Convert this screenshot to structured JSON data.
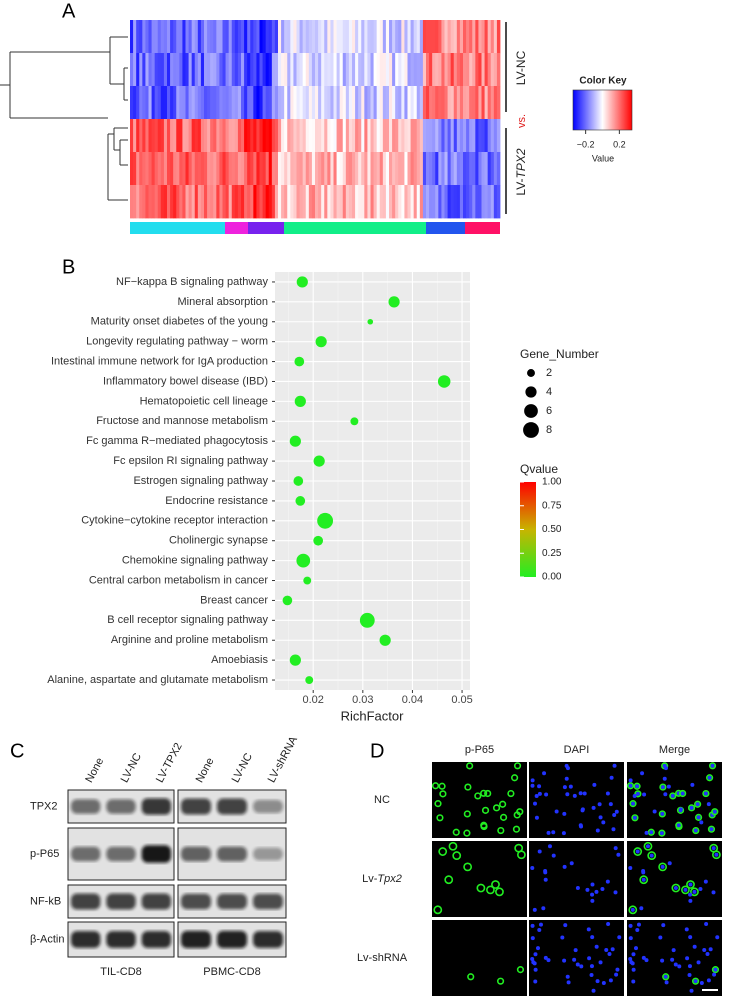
{
  "panel_a": {
    "label": "A",
    "group_top": "LV-NC",
    "versus": "vs.",
    "group_bottom": [
      "LV-",
      "TPX2"
    ],
    "color_key": {
      "title": "Color Key",
      "label": "Value",
      "lim": [
        -0.35,
        0.35
      ],
      "ticks": [
        {
          "value": -0.2,
          "label": "−0.2"
        },
        0.2
      ]
    }
  },
  "chart_data": {
    "label": "B",
    "type": "scatter",
    "x_label": "RichFactor",
    "categories": [
      "NF−kappa B signaling pathway",
      "Mineral absorption",
      "Maturity onset diabetes of the young",
      "Longevity regulating pathway − worm",
      "Intestinal immune network for IgA production",
      "Inflammatory bowel disease (IBD)",
      "Hematopoietic cell lineage",
      "Fructose and mannose metabolism",
      "Fc gamma R−mediated phagocytosis",
      "Fc epsilon RI signaling pathway",
      "Estrogen signaling pathway",
      "Endocrine resistance",
      "Cytokine−cytokine receptor interaction",
      "Cholinergic synapse",
      "Chemokine signaling pathway",
      "Central carbon metabolism in cancer",
      "Breast cancer",
      "B cell receptor signaling pathway",
      "Arginine and proline metabolism",
      "Amoebiasis",
      "Alanine, aspartate and glutamate metabolism"
    ],
    "values": [
      0.0178,
      0.0363,
      0.0315,
      0.0216,
      0.0172,
      0.0464,
      0.0174,
      0.0283,
      0.0164,
      0.0212,
      0.017,
      0.0174,
      0.0224,
      0.021,
      0.018,
      0.0188,
      0.0148,
      0.0309,
      0.0345,
      0.0164,
      0.0192
    ],
    "sizes": [
      4,
      4,
      1,
      4,
      3,
      5,
      4,
      2,
      4,
      4,
      3,
      3,
      8,
      3,
      6,
      2,
      3,
      7,
      4,
      4,
      2
    ],
    "qvalues": [
      0,
      0,
      0,
      0,
      0,
      0,
      0,
      0,
      0,
      0,
      0,
      0,
      0,
      0,
      0,
      0,
      0,
      0,
      0,
      0,
      0
    ],
    "xlim": [
      0.0123,
      0.0516
    ],
    "xticks": [
      0.02,
      0.03,
      0.04,
      0.05
    ],
    "grid": true,
    "size_legend": {
      "title": "Gene_Number",
      "values": [
        2,
        4,
        6,
        8
      ]
    },
    "color_legend": {
      "title": "Qvalue",
      "lim": [
        0,
        1
      ],
      "colors": [
        "#22ee22",
        "#c8b400",
        "#ff0000"
      ],
      "ticks": [
        {
          "value": 0,
          "label": "0.00"
        },
        {
          "value": 0.25,
          "label": "0.25"
        },
        {
          "value": 0.5,
          "label": "0.50"
        },
        {
          "value": 0.75,
          "label": "0.75"
        },
        {
          "value": 1,
          "label": "1.00"
        }
      ]
    }
  },
  "panel_c": {
    "label": "C",
    "lanes": [
      "None",
      "LV-NC",
      "LV-TPX2",
      "None",
      "LV-NC",
      "LV-shRNA"
    ],
    "rows": [
      "TPX2",
      "p-P65",
      "NF-kB",
      "β-Actin"
    ],
    "groups": [
      "TIL-CD8",
      "PBMC-CD8"
    ]
  },
  "panel_d": {
    "label": "D",
    "columns": [
      "p-P65",
      "DAPI",
      "Merge"
    ],
    "rows": [
      [
        "NC"
      ],
      [
        "Lv-",
        "Tpx2"
      ],
      [
        "Lv-shRNA"
      ]
    ]
  }
}
